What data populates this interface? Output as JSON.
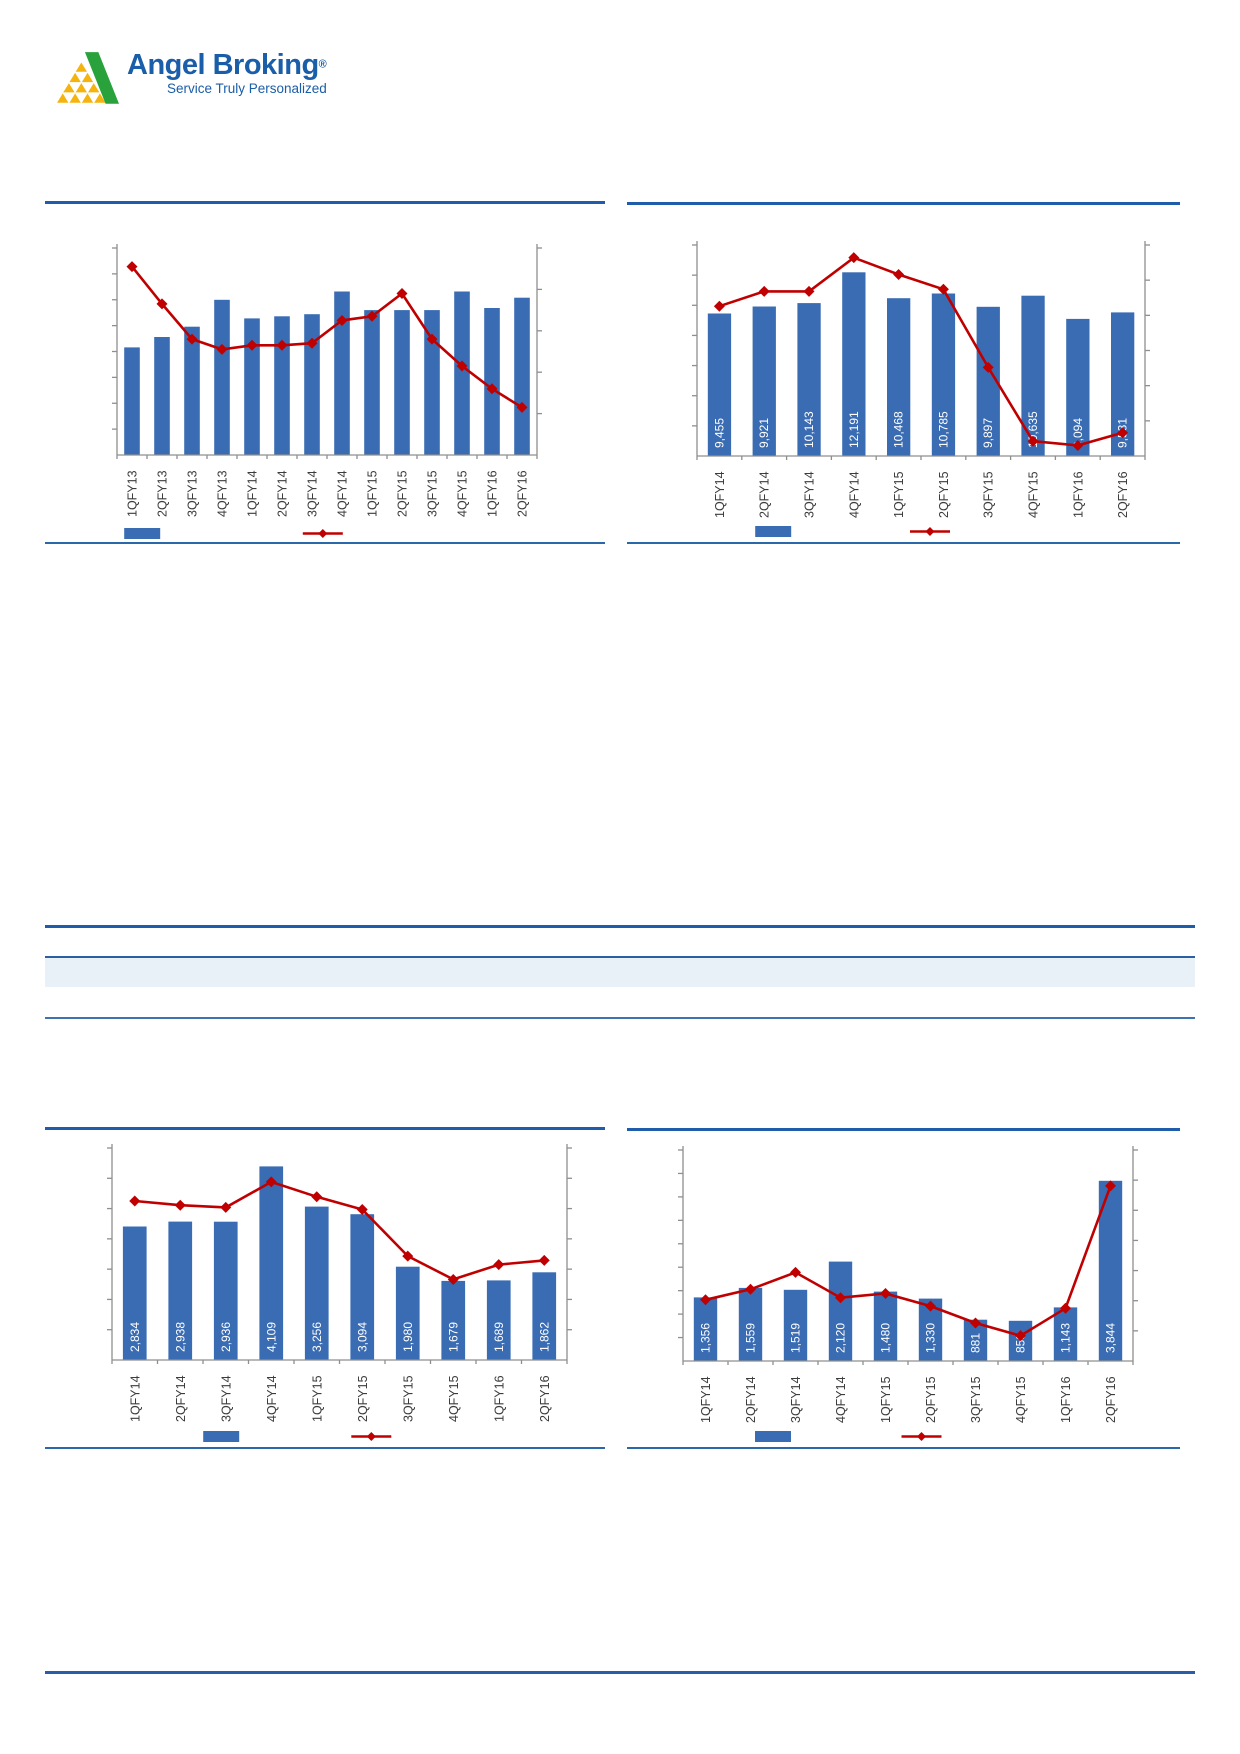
{
  "page": {
    "title": "Angel Broking quarterly results chart page"
  },
  "logo": {
    "name": "Angel Broking",
    "registered": "®",
    "tagline": "Service Truly Personalized"
  },
  "colors": {
    "accent_blue": "#1f5ca9",
    "bar_blue": "#3a6cb3",
    "line_red": "#c00000",
    "band_light_blue": "#e9f1f8",
    "axis_gray": "#8f8f8f",
    "tick_label_gray": "#3c3c3c",
    "logo_blue": "#1a5da8",
    "logo_green": "#29a23c",
    "logo_yellow": "#f5b40d"
  },
  "chart_data": [
    {
      "id": "top-left",
      "type": "bar",
      "combo": "bar+line",
      "title": "",
      "categories": [
        "1QFY13",
        "2QFY13",
        "3QFY13",
        "4QFY13",
        "1QFY14",
        "2QFY14",
        "3QFY14",
        "4QFY14",
        "1QFY15",
        "2QFY15",
        "3QFY15",
        "4QFY15",
        "1QFY16",
        "2QFY16"
      ],
      "series": [
        {
          "name": "bar-series",
          "type": "bar",
          "values": [
            52,
            57,
            62,
            75,
            66,
            67,
            68,
            79,
            70,
            70,
            70,
            79,
            71,
            76
          ],
          "axis_max": 100,
          "labels": null
        },
        {
          "name": "line-series",
          "type": "line",
          "values_pct_of_plot": [
            91,
            73,
            56,
            51,
            53,
            53,
            54,
            65,
            67,
            78,
            56,
            43,
            32,
            23
          ]
        }
      ],
      "values_estimated": true,
      "axis_tick_labels_visible": false,
      "legend": {
        "entries": [
          "bar-series",
          "line-series"
        ],
        "labels_visible": false
      }
    },
    {
      "id": "top-right",
      "type": "bar",
      "combo": "bar+line",
      "title": "",
      "categories": [
        "1QFY14",
        "2QFY14",
        "3QFY14",
        "4QFY14",
        "1QFY15",
        "2QFY15",
        "3QFY15",
        "4QFY15",
        "1QFY16",
        "2QFY16"
      ],
      "series": [
        {
          "name": "bar-series",
          "type": "bar",
          "values": [
            9455,
            9921,
            10143,
            12191,
            10468,
            10785,
            9897,
            10635,
            9094,
            9531
          ],
          "axis_max": 14000,
          "labels": [
            "9,455",
            "9,921",
            "10,143",
            "12,191",
            "10,468",
            "10,785",
            "9,897",
            "10,635",
            "9,094",
            "9,531"
          ]
        },
        {
          "name": "line-series",
          "type": "line",
          "values_pct_of_plot": [
            71,
            78,
            78,
            94,
            86,
            79,
            42,
            7,
            5,
            11
          ]
        }
      ],
      "values_estimated": false,
      "axis_tick_labels_visible": false,
      "legend": {
        "entries": [
          "bar-series",
          "line-series"
        ],
        "labels_visible": false
      }
    },
    {
      "id": "bottom-left",
      "type": "bar",
      "combo": "bar+line",
      "title": "",
      "categories": [
        "1QFY14",
        "2QFY14",
        "3QFY14",
        "4QFY14",
        "1QFY15",
        "2QFY15",
        "3QFY15",
        "4QFY15",
        "1QFY16",
        "2QFY16"
      ],
      "series": [
        {
          "name": "bar-series",
          "type": "bar",
          "values": [
            2834,
            2938,
            2936,
            4109,
            3256,
            3094,
            1980,
            1679,
            1689,
            1862
          ],
          "axis_max": 4500,
          "labels": [
            "2,834",
            "2,938",
            "2,936",
            "4,109",
            "3,256",
            "3,094",
            "1,980",
            "1,679",
            "1,689",
            "1,862"
          ]
        },
        {
          "name": "line-series",
          "type": "line",
          "values_pct_of_plot": [
            75,
            73,
            72,
            84,
            77,
            71,
            49,
            38,
            45,
            47
          ]
        }
      ],
      "values_estimated": false,
      "axis_tick_labels_visible": false,
      "legend": {
        "entries": [
          "bar-series",
          "line-series"
        ],
        "labels_visible": false
      }
    },
    {
      "id": "bottom-right",
      "type": "bar",
      "combo": "bar+line",
      "title": "",
      "categories": [
        "1QFY14",
        "2QFY14",
        "3QFY14",
        "4QFY14",
        "1QFY15",
        "2QFY15",
        "3QFY15",
        "4QFY15",
        "1QFY16",
        "2QFY16"
      ],
      "series": [
        {
          "name": "bar-series",
          "type": "bar",
          "values": [
            1356,
            1559,
            1519,
            2120,
            1480,
            1330,
            881,
            858,
            1143,
            3844
          ],
          "axis_max": 4500,
          "labels": [
            "1,356",
            "1,559",
            "1,519",
            "2,120",
            "1,480",
            "1,330",
            "881",
            "858",
            "1,143",
            "3,844"
          ]
        },
        {
          "name": "line-series",
          "type": "line",
          "values_pct_of_plot": [
            29,
            34,
            42,
            30,
            32,
            26,
            18,
            12,
            25,
            83
          ]
        }
      ],
      "values_estimated": false,
      "axis_tick_labels_visible": false,
      "legend": {
        "entries": [
          "bar-series",
          "line-series"
        ],
        "labels_visible": false
      }
    }
  ]
}
